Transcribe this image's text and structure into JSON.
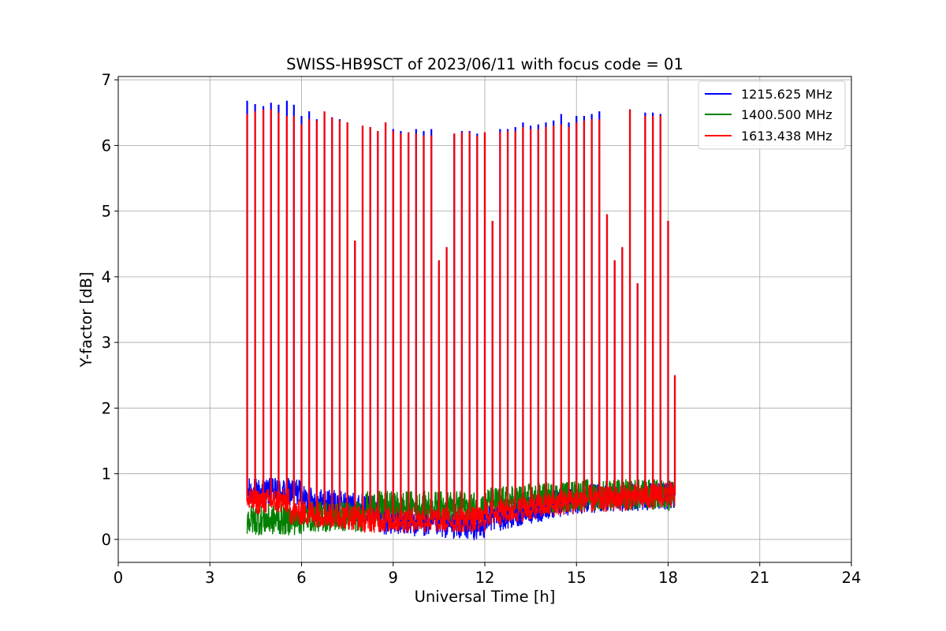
{
  "chart_data": {
    "type": "line",
    "title": "SWISS-HB9SCT of 2023/06/11 with focus code = 01",
    "xlabel": "Universal Time [h]",
    "ylabel": "Y-factor [dB]",
    "xlim": [
      0,
      24
    ],
    "ylim": [
      -0.35,
      7.05
    ],
    "xticks": [
      0,
      3,
      6,
      9,
      12,
      15,
      18,
      21,
      24
    ],
    "yticks": [
      0,
      1,
      2,
      3,
      4,
      5,
      6,
      7
    ],
    "grid": true,
    "legend_position": "top-right",
    "data_range_x": [
      4.22,
      18.22
    ],
    "series": [
      {
        "name": "1215.625 MHz",
        "color": "#0000ff",
        "baseline_description": "noisy baseline around 0.3-0.8 dB",
        "peaks": [
          [
            4.22,
            6.68
          ],
          [
            4.48,
            6.63
          ],
          [
            4.75,
            6.6
          ],
          [
            5.0,
            6.65
          ],
          [
            5.25,
            6.62
          ],
          [
            5.52,
            6.68
          ],
          [
            5.75,
            6.62
          ],
          [
            6.0,
            6.45
          ],
          [
            6.25,
            6.52
          ],
          [
            6.5,
            6.4
          ],
          [
            6.75,
            6.5
          ],
          [
            7.0,
            6.43
          ],
          [
            7.25,
            6.4
          ],
          [
            7.5,
            6.35
          ],
          [
            7.75,
            4.55
          ],
          [
            8.0,
            6.3
          ],
          [
            8.25,
            6.28
          ],
          [
            8.5,
            6.22
          ],
          [
            8.75,
            6.35
          ],
          [
            9.0,
            6.25
          ],
          [
            9.25,
            6.22
          ],
          [
            9.5,
            6.2
          ],
          [
            9.75,
            6.25
          ],
          [
            10.0,
            6.22
          ],
          [
            10.25,
            6.25
          ],
          [
            10.5,
            4.25
          ],
          [
            10.75,
            4.45
          ],
          [
            11.0,
            6.18
          ],
          [
            11.25,
            6.22
          ],
          [
            11.5,
            6.22
          ],
          [
            11.75,
            6.18
          ],
          [
            12.0,
            6.2
          ],
          [
            12.25,
            4.85
          ],
          [
            12.5,
            6.25
          ],
          [
            12.75,
            6.25
          ],
          [
            13.0,
            6.28
          ],
          [
            13.25,
            6.35
          ],
          [
            13.5,
            6.3
          ],
          [
            13.75,
            6.32
          ],
          [
            14.0,
            6.35
          ],
          [
            14.25,
            6.38
          ],
          [
            14.5,
            6.48
          ],
          [
            14.75,
            6.35
          ],
          [
            15.0,
            6.45
          ],
          [
            15.25,
            6.45
          ],
          [
            15.5,
            6.48
          ],
          [
            15.75,
            6.52
          ],
          [
            16.0,
            4.95
          ],
          [
            16.25,
            4.25
          ],
          [
            16.5,
            4.45
          ],
          [
            16.75,
            6.55
          ],
          [
            17.0,
            3.9
          ],
          [
            17.25,
            6.5
          ],
          [
            17.5,
            6.5
          ],
          [
            17.75,
            6.48
          ],
          [
            18.0,
            4.85
          ],
          [
            18.22,
            2.5
          ]
        ]
      },
      {
        "name": "1400.500 MHz",
        "color": "#008000",
        "baseline_description": "noisy baseline around 0.1-1.0 dB",
        "peaks": []
      },
      {
        "name": "1613.438 MHz",
        "color": "#ff0000",
        "baseline_description": "noisy baseline around 0.1-0.8 dB",
        "peaks": [
          [
            4.22,
            6.48
          ],
          [
            4.48,
            6.52
          ],
          [
            4.75,
            6.55
          ],
          [
            5.0,
            6.55
          ],
          [
            5.25,
            6.5
          ],
          [
            5.52,
            6.45
          ],
          [
            5.75,
            6.45
          ],
          [
            6.0,
            6.32
          ],
          [
            6.25,
            6.4
          ],
          [
            6.5,
            6.38
          ],
          [
            6.75,
            6.52
          ],
          [
            7.0,
            6.42
          ],
          [
            7.25,
            6.38
          ],
          [
            7.5,
            6.35
          ],
          [
            7.75,
            4.55
          ],
          [
            8.0,
            6.3
          ],
          [
            8.25,
            6.28
          ],
          [
            8.5,
            6.22
          ],
          [
            8.75,
            6.35
          ],
          [
            9.0,
            6.22
          ],
          [
            9.25,
            6.18
          ],
          [
            9.5,
            6.2
          ],
          [
            9.75,
            6.18
          ],
          [
            10.0,
            6.15
          ],
          [
            10.25,
            6.15
          ],
          [
            10.5,
            4.25
          ],
          [
            10.75,
            4.45
          ],
          [
            11.0,
            6.18
          ],
          [
            11.25,
            6.2
          ],
          [
            11.5,
            6.2
          ],
          [
            11.75,
            6.15
          ],
          [
            12.0,
            6.2
          ],
          [
            12.25,
            4.85
          ],
          [
            12.5,
            6.2
          ],
          [
            12.75,
            6.22
          ],
          [
            13.0,
            6.22
          ],
          [
            13.25,
            6.28
          ],
          [
            13.5,
            6.25
          ],
          [
            13.75,
            6.25
          ],
          [
            14.0,
            6.28
          ],
          [
            14.25,
            6.3
          ],
          [
            14.5,
            6.32
          ],
          [
            14.75,
            6.28
          ],
          [
            15.0,
            6.35
          ],
          [
            15.25,
            6.38
          ],
          [
            15.5,
            6.4
          ],
          [
            15.75,
            6.4
          ],
          [
            16.0,
            4.95
          ],
          [
            16.25,
            4.25
          ],
          [
            16.5,
            4.45
          ],
          [
            16.75,
            6.55
          ],
          [
            17.0,
            3.9
          ],
          [
            17.25,
            6.45
          ],
          [
            17.5,
            6.45
          ],
          [
            17.75,
            6.45
          ],
          [
            18.0,
            4.85
          ],
          [
            18.22,
            2.5
          ]
        ]
      }
    ]
  }
}
